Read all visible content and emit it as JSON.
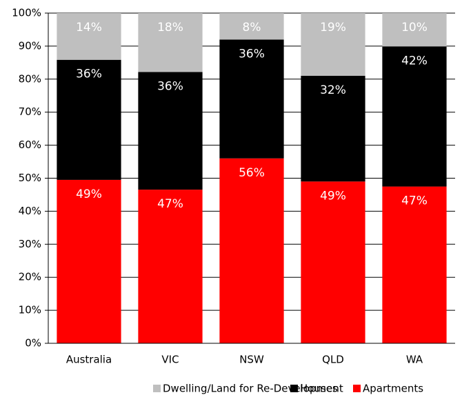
{
  "chart_data": {
    "type": "bar",
    "stacking": "percent",
    "categories": [
      "Australia",
      "VIC",
      "NSW",
      "QLD",
      "WA"
    ],
    "series": [
      {
        "name": "Dwelling/Land for Re-Development",
        "color": "#bfbfbf",
        "values": [
          14,
          18,
          8,
          19,
          10
        ],
        "value_labels": [
          "14%",
          "18%",
          "8%",
          "19%",
          "10%"
        ]
      },
      {
        "name": "Houses",
        "color": "#000000",
        "values": [
          36,
          36,
          36,
          32,
          42
        ],
        "value_labels": [
          "36%",
          "36%",
          "36%",
          "32%",
          "42%"
        ]
      },
      {
        "name": "Apartments",
        "color": "#ff0000",
        "values": [
          49,
          47,
          56,
          49,
          47
        ],
        "value_labels": [
          "49%",
          "47%",
          "56%",
          "49%",
          "47%"
        ]
      }
    ],
    "ylim": [
      0,
      100
    ],
    "yticks": [
      {
        "value": 0,
        "label": "0%"
      },
      {
        "value": 10,
        "label": "10%"
      },
      {
        "value": 20,
        "label": "20%"
      },
      {
        "value": 30,
        "label": "30%"
      },
      {
        "value": 40,
        "label": "40%"
      },
      {
        "value": 50,
        "label": "50%"
      },
      {
        "value": 60,
        "label": "60%"
      },
      {
        "value": 70,
        "label": "70%"
      },
      {
        "value": 80,
        "label": "80%"
      },
      {
        "value": 90,
        "label": "90%"
      },
      {
        "value": 100,
        "label": "100%"
      }
    ],
    "grid": true,
    "legend": "bottom"
  }
}
